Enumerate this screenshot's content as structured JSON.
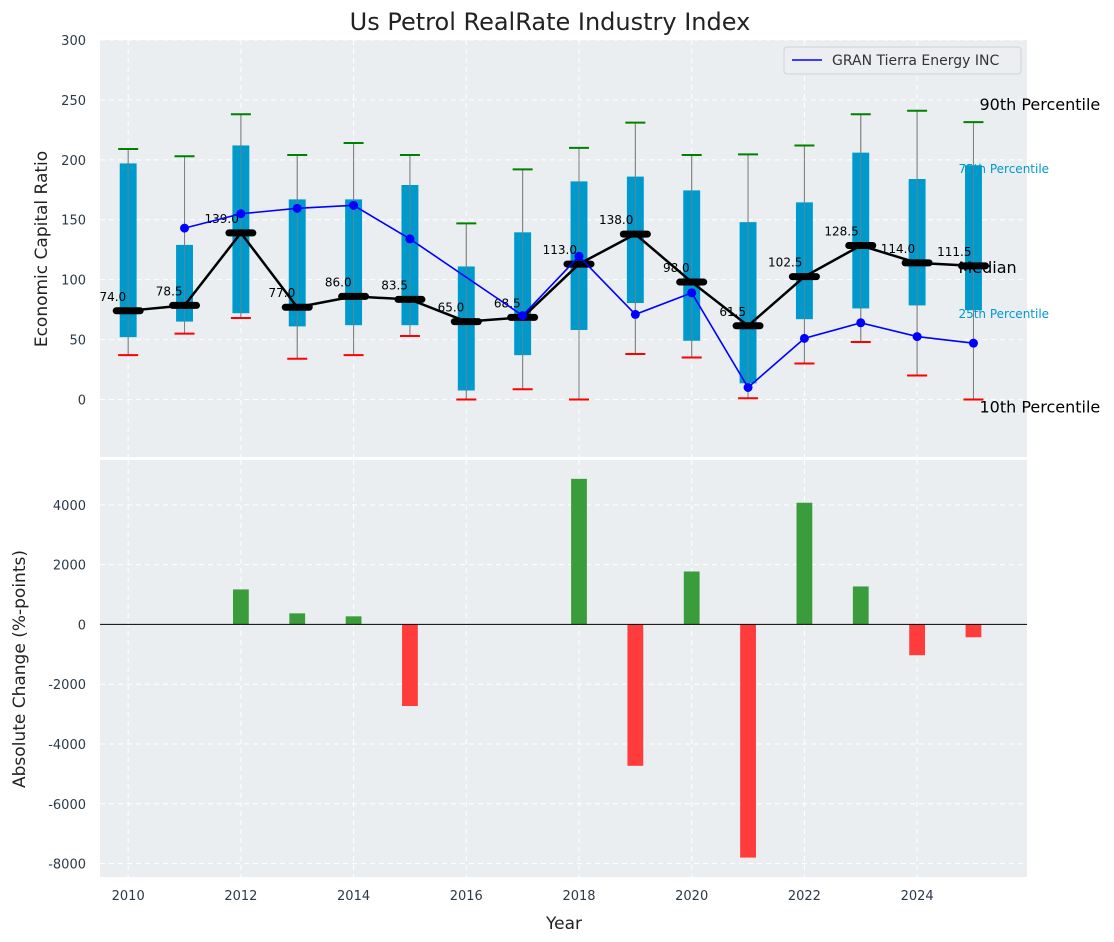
{
  "chart_data": [
    {
      "type": "box-range-line",
      "title": "Us Petrol RealRate Industry Index",
      "ylabel": "Economic Capital Ratio",
      "xlabel": "",
      "ylim": [
        -48,
        300
      ],
      "xlim": [
        2009.5,
        2025.95
      ],
      "yticks": [
        0,
        50,
        100,
        150,
        200,
        250,
        300
      ],
      "grid": true,
      "legend": {
        "placement": "top-right",
        "entries": [
          "GRAN Tierra Energy INC"
        ]
      },
      "years": [
        2010,
        2011,
        2012,
        2013,
        2014,
        2015,
        2016,
        2017,
        2018,
        2019,
        2020,
        2021,
        2022,
        2023,
        2024,
        2025
      ],
      "p10": [
        37,
        55,
        68,
        34,
        37,
        53,
        0,
        8.5,
        0,
        38,
        35,
        1,
        30,
        48,
        20,
        0
      ],
      "p25": [
        52,
        65,
        72,
        61,
        62,
        62,
        7.5,
        37,
        58,
        80.5,
        49,
        13.5,
        67,
        76,
        78.5,
        74.5
      ],
      "median": [
        74.0,
        78.5,
        139.0,
        77.0,
        86.0,
        83.5,
        65.0,
        68.5,
        113.0,
        138.0,
        98.0,
        61.5,
        102.5,
        128.5,
        114.0,
        111.5
      ],
      "median_labels": [
        "74.0",
        "78.5",
        "139.0",
        "77.0",
        "86.0",
        "83.5",
        "65.0",
        "68.5",
        "113.0",
        "138.0",
        "98.0",
        "61.5",
        "102.5",
        "128.5",
        "114.0",
        "111.5"
      ],
      "p75": [
        197,
        129,
        212,
        167,
        167,
        179,
        111,
        139.5,
        182,
        186,
        174.5,
        148,
        164.5,
        206,
        184,
        195.5
      ],
      "p90": [
        209,
        203,
        238,
        204,
        214,
        204,
        147,
        192,
        210,
        231,
        204,
        204.5,
        212,
        238,
        241,
        231.5
      ],
      "company": {
        "name": "GRAN Tierra Energy INC",
        "values": [
          null,
          143,
          155,
          159.5,
          162,
          134,
          null,
          70,
          119.5,
          71,
          89,
          10,
          51,
          64,
          52.5,
          47
        ]
      },
      "annotations": {
        "p90": "90th Percentile",
        "p75": "75th Percentile",
        "median": "Median",
        "p25": "25th Percentile",
        "p10": "10th Percentile"
      },
      "colors": {
        "box": "#0099cc",
        "median": "#000000",
        "company": "#0000ff",
        "p90_cap": "#008000",
        "p10_cap": "#ff0000",
        "whisker": "#808080",
        "background": "#eaeef0"
      }
    },
    {
      "type": "bar",
      "xlabel": "Year",
      "ylabel": "Absolute Change (%-points)",
      "ylim": [
        -8450,
        5500
      ],
      "xlim": [
        2009.5,
        2025.95
      ],
      "yticks": [
        -8000,
        -6000,
        -4000,
        -2000,
        0,
        2000,
        4000
      ],
      "xticks": [
        2010,
        2012,
        2014,
        2016,
        2018,
        2020,
        2022,
        2024
      ],
      "grid": true,
      "years": [
        2010,
        2011,
        2012,
        2013,
        2014,
        2015,
        2016,
        2017,
        2018,
        2019,
        2020,
        2021,
        2022,
        2023,
        2024,
        2025
      ],
      "values": [
        0,
        0,
        1170,
        370,
        270,
        -2730,
        0,
        0,
        4870,
        -4730,
        1770,
        -7800,
        4070,
        1270,
        -1030,
        -430
      ],
      "colors": {
        "positive": "#3a9c3a",
        "negative": "#ff3b3b"
      }
    }
  ]
}
